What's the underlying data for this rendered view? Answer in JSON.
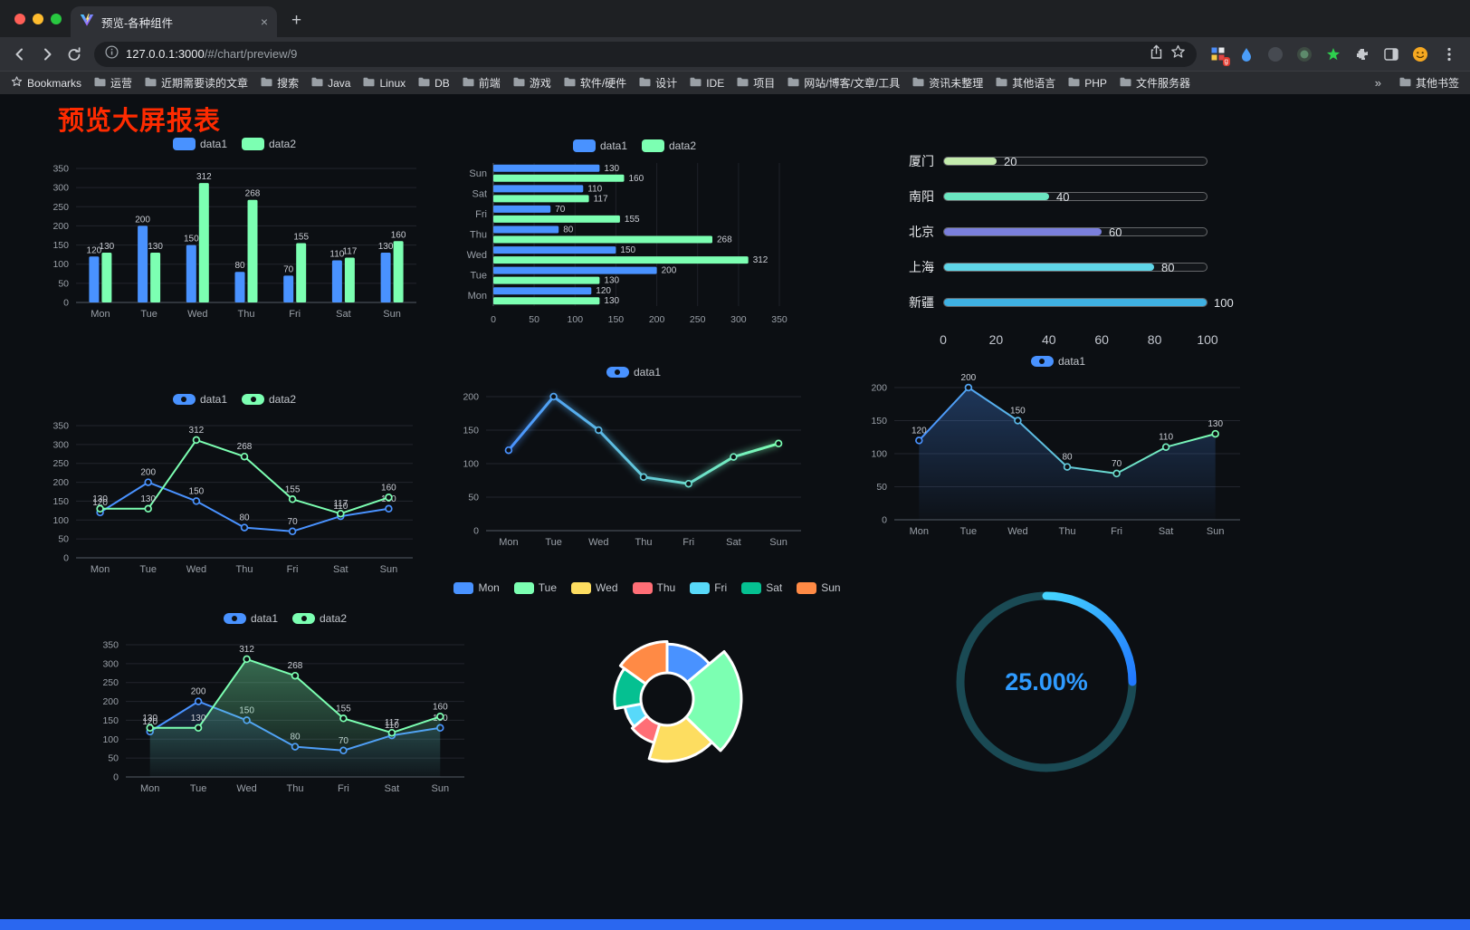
{
  "browser": {
    "traffic_lights": [
      "#ff5f57",
      "#febc2e",
      "#28c840"
    ],
    "tab": {
      "title": "预览-各种组件"
    },
    "address": {
      "host": "127.0.0.1:3000",
      "path": "/#/chart/preview/9"
    },
    "bookmarks_bar": {
      "label": "Bookmarks",
      "folders": [
        "运营",
        "近期需要读的文章",
        "搜索",
        "Java",
        "Linux",
        "DB",
        "前端",
        "游戏",
        "软件/硬件",
        "设计",
        "IDE",
        "项目",
        "网站/博客/文章/工具",
        "资讯未整理",
        "其他语言",
        "PHP",
        "文件服务器"
      ],
      "overflow": "»",
      "other": "其他书签"
    }
  },
  "page": {
    "title": "预览大屏报表",
    "title_color": "#fe2b00",
    "footer_color": "#2a67f0"
  },
  "chart_data": [
    {
      "id": "grouped-bar",
      "type": "bar",
      "legend": [
        "data1",
        "data2"
      ],
      "categories": [
        "Mon",
        "Tue",
        "Wed",
        "Thu",
        "Fri",
        "Sat",
        "Sun"
      ],
      "series": [
        {
          "name": "data1",
          "color": "#4992ff",
          "values": [
            120,
            200,
            150,
            80,
            70,
            110,
            130
          ]
        },
        {
          "name": "data2",
          "color": "#7cffb2",
          "values": [
            130,
            130,
            312,
            268,
            155,
            117,
            160
          ]
        }
      ],
      "ylim": [
        0,
        350
      ],
      "yticks": [
        0,
        50,
        100,
        150,
        200,
        250,
        300,
        350
      ],
      "value_labels": true,
      "legend_position": "top",
      "grid": true
    },
    {
      "id": "horizontal-bar",
      "type": "bar-horizontal",
      "legend": [
        "data1",
        "data2"
      ],
      "categories": [
        "Mon",
        "Tue",
        "Wed",
        "Thu",
        "Fri",
        "Sat",
        "Sun"
      ],
      "series": [
        {
          "name": "data1",
          "color": "#4992ff",
          "values": [
            120,
            200,
            150,
            80,
            70,
            110,
            130
          ]
        },
        {
          "name": "data2",
          "color": "#7cffb2",
          "values": [
            130,
            130,
            312,
            268,
            155,
            117,
            160
          ]
        }
      ],
      "xlim": [
        0,
        350
      ],
      "xticks": [
        0,
        50,
        100,
        150,
        200,
        250,
        300,
        350
      ],
      "value_labels": true,
      "legend_position": "top"
    },
    {
      "id": "city-progress",
      "type": "bar-progress",
      "categories": [
        "厦门",
        "南阳",
        "北京",
        "上海",
        "新疆"
      ],
      "values": [
        20,
        40,
        60,
        80,
        100
      ],
      "colors": [
        "#c4ebad",
        "#6be6c1",
        "#7a7fdc",
        "#5fd5e7",
        "#3fb1e3"
      ],
      "xlim": [
        0,
        100
      ],
      "xticks": [
        0,
        20,
        40,
        60,
        80,
        100
      ]
    },
    {
      "id": "line-dual",
      "type": "line",
      "legend": [
        "data1",
        "data2"
      ],
      "categories": [
        "Mon",
        "Tue",
        "Wed",
        "Thu",
        "Fri",
        "Sat",
        "Sun"
      ],
      "series": [
        {
          "name": "data1",
          "color": "#4992ff",
          "values": [
            120,
            200,
            150,
            80,
            70,
            110,
            130
          ],
          "width": 2
        },
        {
          "name": "data2",
          "color": "#7cffb2",
          "values": [
            130,
            130,
            312,
            268,
            155,
            117,
            160
          ],
          "width": 2
        }
      ],
      "ylim": [
        0,
        350
      ],
      "yticks": [
        0,
        50,
        100,
        150,
        200,
        250,
        300,
        350
      ],
      "value_labels": true,
      "legend_position": "top"
    },
    {
      "id": "line-gradient",
      "type": "line",
      "legend": [
        "data1"
      ],
      "categories": [
        "Mon",
        "Tue",
        "Wed",
        "Thu",
        "Fri",
        "Sat",
        "Sun"
      ],
      "series": [
        {
          "name": "data1",
          "gradient": [
            "#4992ff",
            "#7cffb2"
          ],
          "values": [
            120,
            200,
            150,
            80,
            70,
            110,
            130
          ],
          "width": 3,
          "glow": true
        }
      ],
      "ylim": [
        0,
        200
      ],
      "yticks": [
        0,
        50,
        100,
        150,
        200
      ],
      "value_labels": false,
      "legend_position": "top"
    },
    {
      "id": "line-area-single",
      "type": "line",
      "legend": [
        "data1"
      ],
      "categories": [
        "Mon",
        "Tue",
        "Wed",
        "Thu",
        "Fri",
        "Sat",
        "Sun"
      ],
      "series": [
        {
          "name": "data1",
          "gradient": [
            "#4992ff",
            "#7cffb2"
          ],
          "values": [
            120,
            200,
            150,
            80,
            70,
            110,
            130
          ],
          "width": 2,
          "area": "#4992ff",
          "area_opacity": 0.3
        }
      ],
      "ylim": [
        0,
        200
      ],
      "yticks": [
        0,
        50,
        100,
        150,
        200
      ],
      "value_labels": true,
      "legend_position": "top"
    },
    {
      "id": "line-area-dual",
      "type": "line",
      "legend": [
        "data1",
        "data2"
      ],
      "categories": [
        "Mon",
        "Tue",
        "Wed",
        "Thu",
        "Fri",
        "Sat",
        "Sun"
      ],
      "series": [
        {
          "name": "data1",
          "color": "#4992ff",
          "values": [
            120,
            200,
            150,
            80,
            70,
            110,
            130
          ],
          "width": 2,
          "area": "#4992ff",
          "area_opacity": 0.18
        },
        {
          "name": "data2",
          "color": "#7cffb2",
          "values": [
            130,
            130,
            312,
            268,
            155,
            117,
            160
          ],
          "width": 2,
          "area": "#7cffb2",
          "area_opacity": 0.38
        }
      ],
      "ylim": [
        0,
        350
      ],
      "yticks": [
        0,
        50,
        100,
        150,
        200,
        250,
        300,
        350
      ],
      "value_labels": true,
      "legend_position": "top"
    },
    {
      "id": "rose-pie",
      "type": "pie",
      "rose": true,
      "categories": [
        "Mon",
        "Tue",
        "Wed",
        "Thu",
        "Fri",
        "Sat",
        "Sun"
      ],
      "values": [
        120,
        200,
        150,
        80,
        70,
        110,
        130
      ],
      "colors": [
        "#4992ff",
        "#7cffb2",
        "#fddd60",
        "#ff6e76",
        "#58d9f9",
        "#05c091",
        "#ff8a45"
      ],
      "legend_position": "top"
    },
    {
      "id": "percent-gauge",
      "type": "gauge",
      "value": 25,
      "max": 100,
      "label": "25.00%",
      "label_color": "#2f9bff",
      "track_color": "#1a4a54",
      "arc_colors": [
        "#45d4ff",
        "#2178ff"
      ]
    }
  ]
}
